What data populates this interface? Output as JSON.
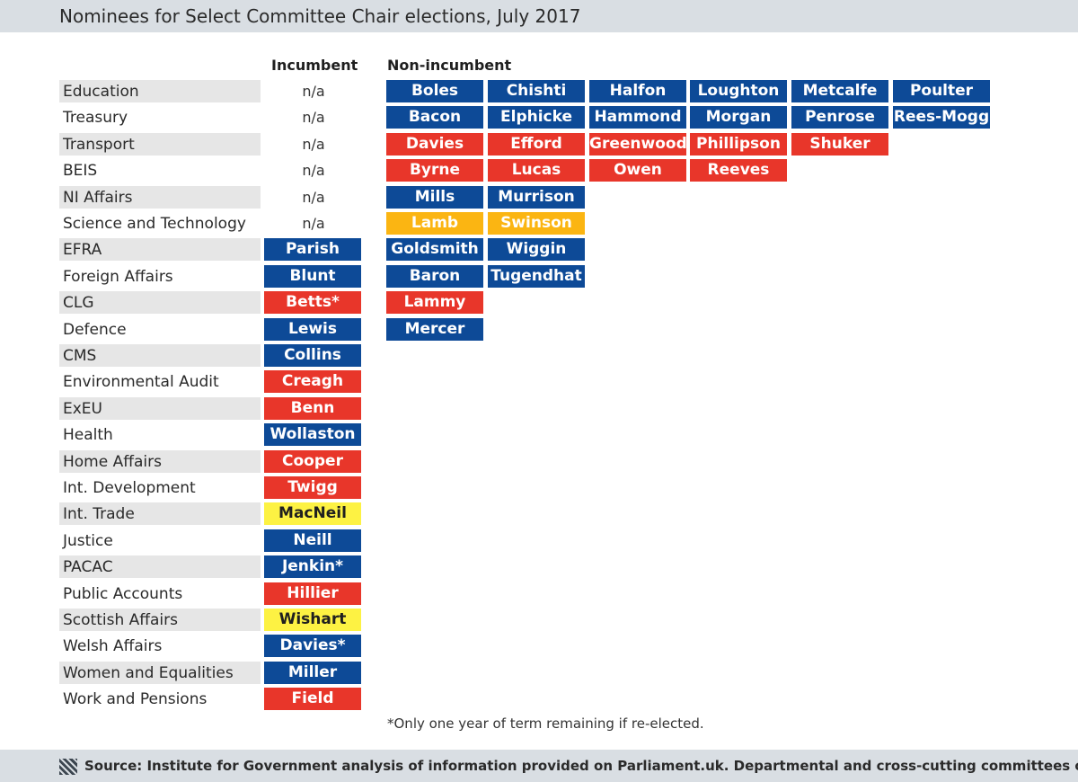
{
  "title": "Nominees for Select Committee Chair elections, July 2017",
  "headers": {
    "incumbent": "Incumbent",
    "non_incumbent": "Non-incumbent"
  },
  "colors": {
    "conservative": "#0d4a97",
    "labour": "#e8362a",
    "libdem": "#fbb512",
    "snp": "#fdf243",
    "row_shade": "#e6e6e6",
    "bar_bg": "#d9dee3"
  },
  "rows": [
    {
      "committee": "Education",
      "incumbent": {
        "name": "n/a",
        "party": "none"
      },
      "nominees": [
        {
          "name": "Boles",
          "party": "conservative"
        },
        {
          "name": "Chishti",
          "party": "conservative"
        },
        {
          "name": "Halfon",
          "party": "conservative"
        },
        {
          "name": "Loughton",
          "party": "conservative"
        },
        {
          "name": "Metcalfe",
          "party": "conservative"
        },
        {
          "name": "Poulter",
          "party": "conservative"
        }
      ]
    },
    {
      "committee": "Treasury",
      "incumbent": {
        "name": "n/a",
        "party": "none"
      },
      "nominees": [
        {
          "name": "Bacon",
          "party": "conservative"
        },
        {
          "name": "Elphicke",
          "party": "conservative"
        },
        {
          "name": "Hammond",
          "party": "conservative"
        },
        {
          "name": "Morgan",
          "party": "conservative"
        },
        {
          "name": "Penrose",
          "party": "conservative"
        },
        {
          "name": "Rees-Mogg",
          "party": "conservative"
        }
      ]
    },
    {
      "committee": "Transport",
      "incumbent": {
        "name": "n/a",
        "party": "none"
      },
      "nominees": [
        {
          "name": "Davies",
          "party": "labour"
        },
        {
          "name": "Efford",
          "party": "labour"
        },
        {
          "name": "Greenwood",
          "party": "labour"
        },
        {
          "name": "Phillipson",
          "party": "labour"
        },
        {
          "name": "Shuker",
          "party": "labour"
        }
      ]
    },
    {
      "committee": "BEIS",
      "incumbent": {
        "name": "n/a",
        "party": "none"
      },
      "nominees": [
        {
          "name": "Byrne",
          "party": "labour"
        },
        {
          "name": "Lucas",
          "party": "labour"
        },
        {
          "name": "Owen",
          "party": "labour"
        },
        {
          "name": "Reeves",
          "party": "labour"
        }
      ]
    },
    {
      "committee": "NI Affairs",
      "incumbent": {
        "name": "n/a",
        "party": "none"
      },
      "nominees": [
        {
          "name": "Mills",
          "party": "conservative"
        },
        {
          "name": "Murrison",
          "party": "conservative"
        }
      ]
    },
    {
      "committee": "Science and Technology",
      "incumbent": {
        "name": "n/a",
        "party": "none"
      },
      "nominees": [
        {
          "name": "Lamb",
          "party": "libdem"
        },
        {
          "name": "Swinson",
          "party": "libdem"
        }
      ]
    },
    {
      "committee": "EFRA",
      "incumbent": {
        "name": "Parish",
        "party": "conservative"
      },
      "nominees": [
        {
          "name": "Goldsmith",
          "party": "conservative"
        },
        {
          "name": "Wiggin",
          "party": "conservative"
        }
      ]
    },
    {
      "committee": "Foreign Affairs",
      "incumbent": {
        "name": "Blunt",
        "party": "conservative"
      },
      "nominees": [
        {
          "name": "Baron",
          "party": "conservative"
        },
        {
          "name": "Tugendhat",
          "party": "conservative"
        }
      ]
    },
    {
      "committee": "CLG",
      "incumbent": {
        "name": "Betts*",
        "party": "labour"
      },
      "nominees": [
        {
          "name": "Lammy",
          "party": "labour"
        }
      ]
    },
    {
      "committee": "Defence",
      "incumbent": {
        "name": "Lewis",
        "party": "conservative"
      },
      "nominees": [
        {
          "name": "Mercer",
          "party": "conservative"
        }
      ]
    },
    {
      "committee": "CMS",
      "incumbent": {
        "name": "Collins",
        "party": "conservative"
      },
      "nominees": []
    },
    {
      "committee": "Environmental Audit",
      "incumbent": {
        "name": "Creagh",
        "party": "labour"
      },
      "nominees": []
    },
    {
      "committee": "ExEU",
      "incumbent": {
        "name": "Benn",
        "party": "labour"
      },
      "nominees": []
    },
    {
      "committee": "Health",
      "incumbent": {
        "name": "Wollaston",
        "party": "conservative"
      },
      "nominees": []
    },
    {
      "committee": "Home Affairs",
      "incumbent": {
        "name": "Cooper",
        "party": "labour"
      },
      "nominees": []
    },
    {
      "committee": "Int. Development",
      "incumbent": {
        "name": "Twigg",
        "party": "labour"
      },
      "nominees": []
    },
    {
      "committee": "Int. Trade",
      "incumbent": {
        "name": "MacNeil",
        "party": "snp"
      },
      "nominees": []
    },
    {
      "committee": "Justice",
      "incumbent": {
        "name": "Neill",
        "party": "conservative"
      },
      "nominees": []
    },
    {
      "committee": "PACAC",
      "incumbent": {
        "name": "Jenkin*",
        "party": "conservative"
      },
      "nominees": []
    },
    {
      "committee": "Public Accounts",
      "incumbent": {
        "name": "Hillier",
        "party": "labour"
      },
      "nominees": []
    },
    {
      "committee": "Scottish Affairs",
      "incumbent": {
        "name": "Wishart",
        "party": "snp"
      },
      "nominees": []
    },
    {
      "committee": "Welsh Affairs",
      "incumbent": {
        "name": "Davies*",
        "party": "conservative"
      },
      "nominees": []
    },
    {
      "committee": "Women and Equalities",
      "incumbent": {
        "name": "Miller",
        "party": "conservative"
      },
      "nominees": []
    },
    {
      "committee": "Work and Pensions",
      "incumbent": {
        "name": "Field",
        "party": "labour"
      },
      "nominees": []
    }
  ],
  "footnote": "*Only one year of term remaining if re-elected.",
  "source": "Source: Institute for Government analysis of information provided on Parliament.uk. Departmental and cross-cutting committees only.",
  "source_icon": "hatched-logo-icon"
}
